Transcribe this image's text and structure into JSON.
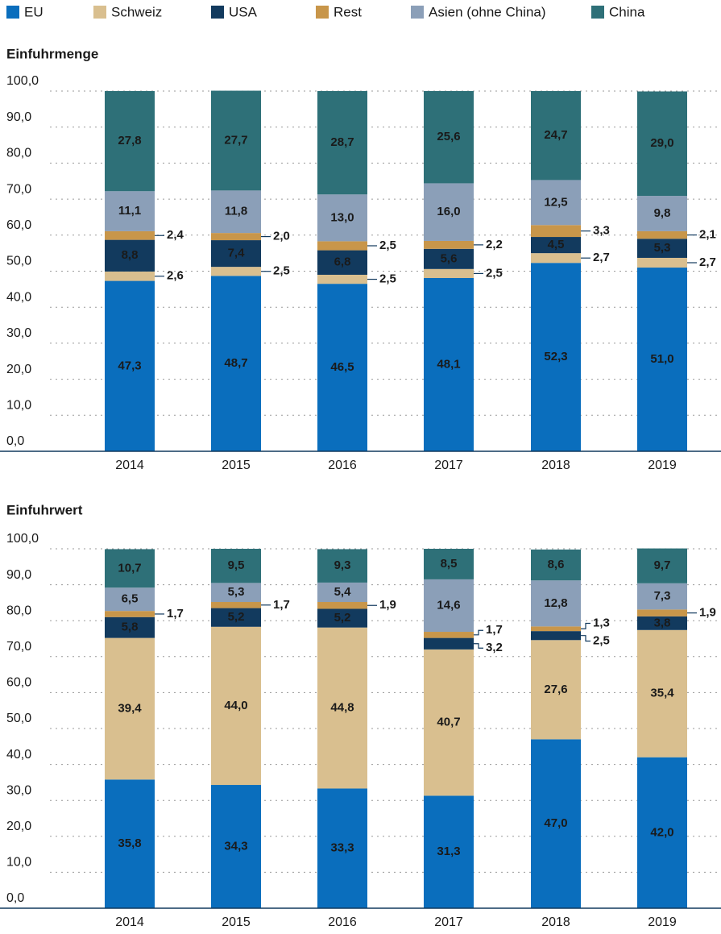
{
  "chart_data": [
    {
      "type": "bar",
      "stacked": true,
      "title": "Einfuhrmenge",
      "categories": [
        "2014",
        "2015",
        "2016",
        "2017",
        "2018",
        "2019"
      ],
      "series": [
        {
          "name": "EU",
          "color": "#0a6ebd",
          "values": [
            47.3,
            48.7,
            46.5,
            48.1,
            52.3,
            51.0
          ],
          "value_labels": [
            "47,3",
            "48,7",
            "46,5",
            "48,1",
            "52,3",
            "51,0"
          ]
        },
        {
          "name": "Schweiz",
          "color": "#d9bf8f",
          "values": [
            2.6,
            2.5,
            2.5,
            2.5,
            2.7,
            2.7
          ],
          "value_labels": [
            "2,6",
            "2,5",
            "2,5",
            "2,5",
            "2,7",
            "2,7"
          ]
        },
        {
          "name": "USA",
          "color": "#123a5e",
          "values": [
            8.8,
            7.4,
            6.8,
            5.6,
            4.5,
            5.3
          ],
          "value_labels": [
            "8,8",
            "7,4",
            "6,8",
            "5,6",
            "4,5",
            "5,3"
          ]
        },
        {
          "name": "Rest",
          "color": "#c8964a",
          "values": [
            2.4,
            2.0,
            2.5,
            2.2,
            3.3,
            2.1
          ],
          "value_labels": [
            "2,4",
            "2,0",
            "2,5",
            "2,2",
            "3,3",
            "2,1"
          ]
        },
        {
          "name": "Asien (ohne China)",
          "color": "#8b9fb8",
          "values": [
            11.1,
            11.8,
            13.0,
            16.0,
            12.5,
            9.8
          ],
          "value_labels": [
            "11,1",
            "11,8",
            "13,0",
            "16,0",
            "12,5",
            "9,8"
          ]
        },
        {
          "name": "China",
          "color": "#2e7078",
          "values": [
            27.8,
            27.7,
            28.7,
            25.6,
            24.7,
            29.0
          ],
          "value_labels": [
            "27,8",
            "27,7",
            "28,7",
            "25,6",
            "24,7",
            "29,0"
          ]
        }
      ],
      "ylim": [
        0,
        100
      ],
      "yticks": [
        {
          "value": 0,
          "label": "0,0"
        },
        {
          "value": 10,
          "label": "10,0"
        },
        {
          "value": 20,
          "label": "20,0"
        },
        {
          "value": 30,
          "label": "30,0"
        },
        {
          "value": 40,
          "label": "40,0"
        },
        {
          "value": 50,
          "label": "50,0"
        },
        {
          "value": 60,
          "label": "60,0"
        },
        {
          "value": 70,
          "label": "70,0"
        },
        {
          "value": 80,
          "label": "80,0"
        },
        {
          "value": 90,
          "label": "90,0"
        },
        {
          "value": 100,
          "label": "100,0"
        }
      ],
      "grid": true
    },
    {
      "type": "bar",
      "stacked": true,
      "title": "Einfuhrwert",
      "categories": [
        "2014",
        "2015",
        "2016",
        "2017",
        "2018",
        "2019"
      ],
      "series": [
        {
          "color": "#0a6ebd",
          "values": [
            35.8,
            34.3,
            33.3,
            31.3,
            47.0,
            42.0
          ],
          "value_labels": [
            "35,8",
            "34,3",
            "33,3",
            "31,3",
            "47,0",
            "42,0"
          ]
        },
        {
          "color": "#d9bf8f",
          "values": [
            39.4,
            44.0,
            44.8,
            40.7,
            27.6,
            35.4
          ],
          "value_labels": [
            "39,4",
            "44,0",
            "44,8",
            "40,7",
            "27,6",
            "35,4"
          ]
        },
        {
          "color": "#123a5e",
          "values": [
            5.8,
            5.2,
            5.2,
            3.2,
            2.5,
            3.8
          ],
          "value_labels": [
            "5,8",
            "5,2",
            "5,2",
            "3,2",
            "2,5",
            "3,8"
          ]
        },
        {
          "color": "#c8964a",
          "values": [
            1.7,
            1.7,
            1.9,
            1.7,
            1.3,
            1.9
          ],
          "value_labels": [
            "1,7",
            "1,7",
            "1,9",
            "1,7",
            "1,3",
            "1,9"
          ]
        },
        {
          "color": "#8b9fb8",
          "values": [
            6.5,
            5.3,
            5.4,
            14.6,
            12.8,
            7.3
          ],
          "value_labels": [
            "6,5",
            "5,3",
            "5,4",
            "14,6",
            "12,8",
            "7,3"
          ]
        },
        {
          "color": "#2e7078",
          "values": [
            10.7,
            9.5,
            9.3,
            8.5,
            8.6,
            9.7
          ],
          "value_labels": [
            "10,7",
            "9,5",
            "9,3",
            "8,5",
            "8,6",
            "9,7"
          ]
        }
      ],
      "ylim": [
        0,
        100
      ],
      "yticks": [
        {
          "value": 0,
          "label": "0,0"
        },
        {
          "value": 10,
          "label": "10,0"
        },
        {
          "value": 20,
          "label": "20,0"
        },
        {
          "value": 30,
          "label": "30,0"
        },
        {
          "value": 40,
          "label": "40,0"
        },
        {
          "value": 50,
          "label": "50,0"
        },
        {
          "value": 60,
          "label": "60,0"
        },
        {
          "value": 70,
          "label": "70,0"
        },
        {
          "value": 80,
          "label": "80,0"
        },
        {
          "value": 90,
          "label": "90,0"
        },
        {
          "value": 100,
          "label": "100,0"
        }
      ],
      "grid": true
    }
  ]
}
